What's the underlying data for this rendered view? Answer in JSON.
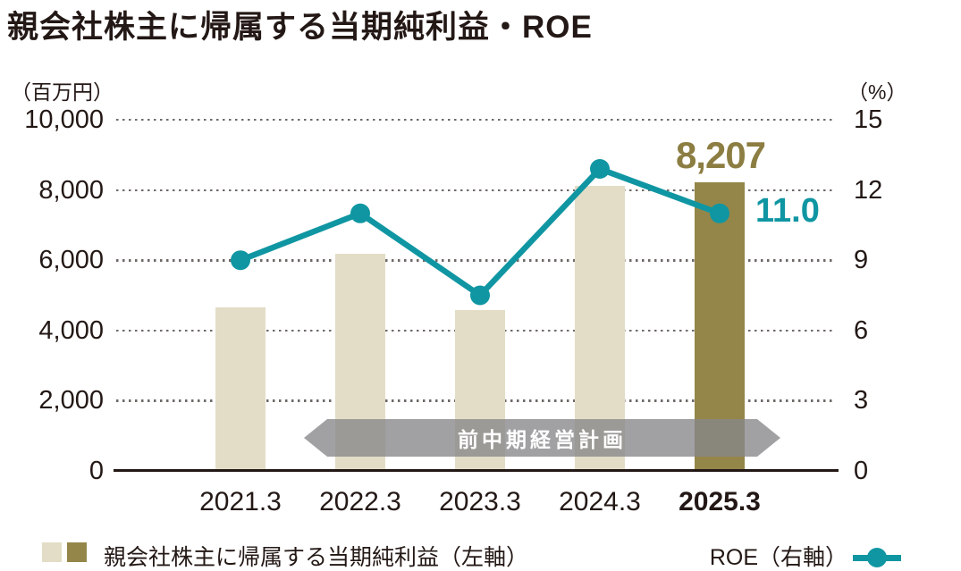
{
  "title": "親会社株主に帰属する当期純利益・ROE",
  "chart_data": {
    "type": "combo (bar + line, dual axis)",
    "categories": [
      "2021.3",
      "2022.3",
      "2023.3",
      "2024.3",
      "2025.3"
    ],
    "series": [
      {
        "name": "親会社株主に帰属する当期純利益（左軸）",
        "type": "bar",
        "axis": "left",
        "unit": "百万円",
        "values": [
          4660,
          6180,
          4580,
          8120,
          8207
        ]
      },
      {
        "name": "ROE（右軸）",
        "type": "line",
        "axis": "right",
        "unit": "%",
        "values": [
          9.0,
          11.0,
          7.5,
          12.9,
          11.0
        ]
      }
    ],
    "left_axis": {
      "unit": "（百万円）",
      "min": 0,
      "max": 10000,
      "tick_values": [
        10000,
        8000,
        6000,
        4000,
        2000,
        0
      ],
      "tick_labels": [
        "10,000",
        "8,000",
        "6,000",
        "4,000",
        "2,000",
        "0"
      ]
    },
    "right_axis": {
      "unit": "（%）",
      "min": 0,
      "max": 15,
      "tick_values": [
        15,
        12,
        9,
        6,
        3,
        0
      ],
      "tick_labels": [
        "15",
        "12",
        "9",
        "6",
        "3",
        "0"
      ]
    },
    "grid": "dotted horizontal",
    "highlight_index": 4,
    "annotations": {
      "final_bar_value_label": "8,207",
      "final_roe_label": "11.0",
      "band_label": "前中期経営計画"
    }
  },
  "legend": {
    "bar_label": "親会社株主に帰属する当期純利益（左軸）",
    "line_label": "ROE（右軸）"
  },
  "colors": {
    "bar": "#e3ddc7",
    "bar_highlight": "#948649",
    "line": "#0f96a2",
    "text": "#231815",
    "grid_dot": "#6f6a67",
    "band_bg": "rgba(134,134,137,0.78)",
    "band_text": "#ffffff",
    "value_label_olive": "#8c7e42"
  }
}
